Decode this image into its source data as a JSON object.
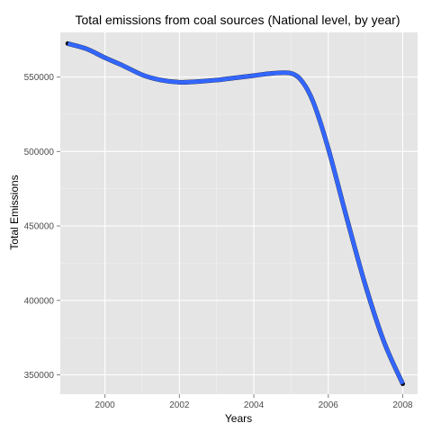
{
  "chart_data": {
    "type": "line",
    "title": "Total emissions from coal sources (National level, by year)",
    "xlabel": "Years",
    "ylabel": "Total Emissions",
    "xlim": [
      1998.8,
      2008.4
    ],
    "ylim": [
      337000,
      580000
    ],
    "x_ticks": [
      2000,
      2002,
      2004,
      2006,
      2008
    ],
    "x_tick_labels": [
      "2000",
      "2002",
      "2004",
      "2006",
      "2008"
    ],
    "y_ticks": [
      350000,
      400000,
      450000,
      500000,
      550000
    ],
    "y_tick_labels": [
      "350000",
      "400000",
      "450000",
      "500000",
      "550000"
    ],
    "grid": true,
    "panel_background": "#e5e5e5",
    "grid_color": "#ffffff",
    "series": [
      {
        "color": "#3366ff",
        "points": [
          {
            "x": 1999.0,
            "y": 572500
          },
          {
            "x": 1999.5,
            "y": 569000
          },
          {
            "x": 2000.0,
            "y": 563000
          },
          {
            "x": 2000.5,
            "y": 557500
          },
          {
            "x": 2001.0,
            "y": 551500
          },
          {
            "x": 2001.5,
            "y": 548000
          },
          {
            "x": 2002.0,
            "y": 546500
          },
          {
            "x": 2002.5,
            "y": 547000
          },
          {
            "x": 2003.0,
            "y": 548000
          },
          {
            "x": 2003.5,
            "y": 549500
          },
          {
            "x": 2004.0,
            "y": 551000
          },
          {
            "x": 2004.5,
            "y": 552500
          },
          {
            "x": 2005.0,
            "y": 552500
          },
          {
            "x": 2005.3,
            "y": 547000
          },
          {
            "x": 2005.6,
            "y": 533000
          },
          {
            "x": 2006.0,
            "y": 502000
          },
          {
            "x": 2006.5,
            "y": 455000
          },
          {
            "x": 2007.0,
            "y": 410000
          },
          {
            "x": 2007.5,
            "y": 372000
          },
          {
            "x": 2008.0,
            "y": 344000
          }
        ]
      }
    ]
  }
}
